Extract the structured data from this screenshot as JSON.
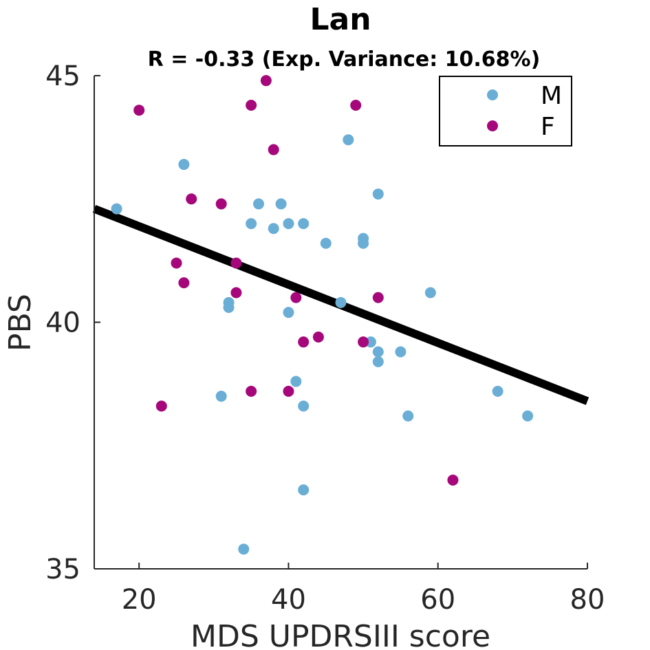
{
  "chart_data": {
    "type": "scatter",
    "title": "Lan",
    "subtitle": "R = -0.33 (Exp. Variance: 10.68%)",
    "xlabel": "MDS UPDRSIII score",
    "ylabel": "PBS",
    "xlim": [
      14,
      80
    ],
    "ylim": [
      35,
      45
    ],
    "xticks": [
      20,
      40,
      60,
      80
    ],
    "yticks": [
      35,
      40,
      45
    ],
    "grid": false,
    "legend_position": "top-right",
    "series": [
      {
        "name": "M",
        "color": "#6aaed6",
        "points": [
          [
            17,
            42.3
          ],
          [
            26,
            43.2
          ],
          [
            31,
            38.5
          ],
          [
            32,
            40.4
          ],
          [
            32,
            40.3
          ],
          [
            34,
            35.4
          ],
          [
            35,
            42.0
          ],
          [
            36,
            42.4
          ],
          [
            38,
            41.9
          ],
          [
            39,
            42.4
          ],
          [
            40,
            42.0
          ],
          [
            40,
            40.2
          ],
          [
            41,
            38.8
          ],
          [
            42,
            42.0
          ],
          [
            42,
            38.3
          ],
          [
            42,
            36.6
          ],
          [
            45,
            41.6
          ],
          [
            47,
            40.4
          ],
          [
            48,
            43.7
          ],
          [
            50,
            41.7
          ],
          [
            50,
            41.6
          ],
          [
            51,
            39.6
          ],
          [
            52,
            42.6
          ],
          [
            52,
            39.4
          ],
          [
            52,
            39.2
          ],
          [
            55,
            39.4
          ],
          [
            56,
            38.1
          ],
          [
            59,
            40.6
          ],
          [
            68,
            38.6
          ],
          [
            72,
            38.1
          ]
        ]
      },
      {
        "name": "F",
        "color": "#a6077a",
        "points": [
          [
            20,
            44.3
          ],
          [
            23,
            38.3
          ],
          [
            25,
            41.2
          ],
          [
            26,
            40.8
          ],
          [
            27,
            42.5
          ],
          [
            31,
            42.4
          ],
          [
            33,
            41.2
          ],
          [
            33,
            40.6
          ],
          [
            35,
            44.4
          ],
          [
            35,
            38.6
          ],
          [
            37,
            44.9
          ],
          [
            38,
            43.5
          ],
          [
            40,
            38.6
          ],
          [
            41,
            40.5
          ],
          [
            42,
            39.6
          ],
          [
            44,
            39.7
          ],
          [
            49,
            44.4
          ],
          [
            50,
            39.6
          ],
          [
            52,
            40.5
          ],
          [
            62,
            36.8
          ]
        ]
      }
    ],
    "fit_line": {
      "x": [
        14,
        80
      ],
      "y": [
        42.3,
        38.4
      ],
      "color": "#000000"
    }
  }
}
